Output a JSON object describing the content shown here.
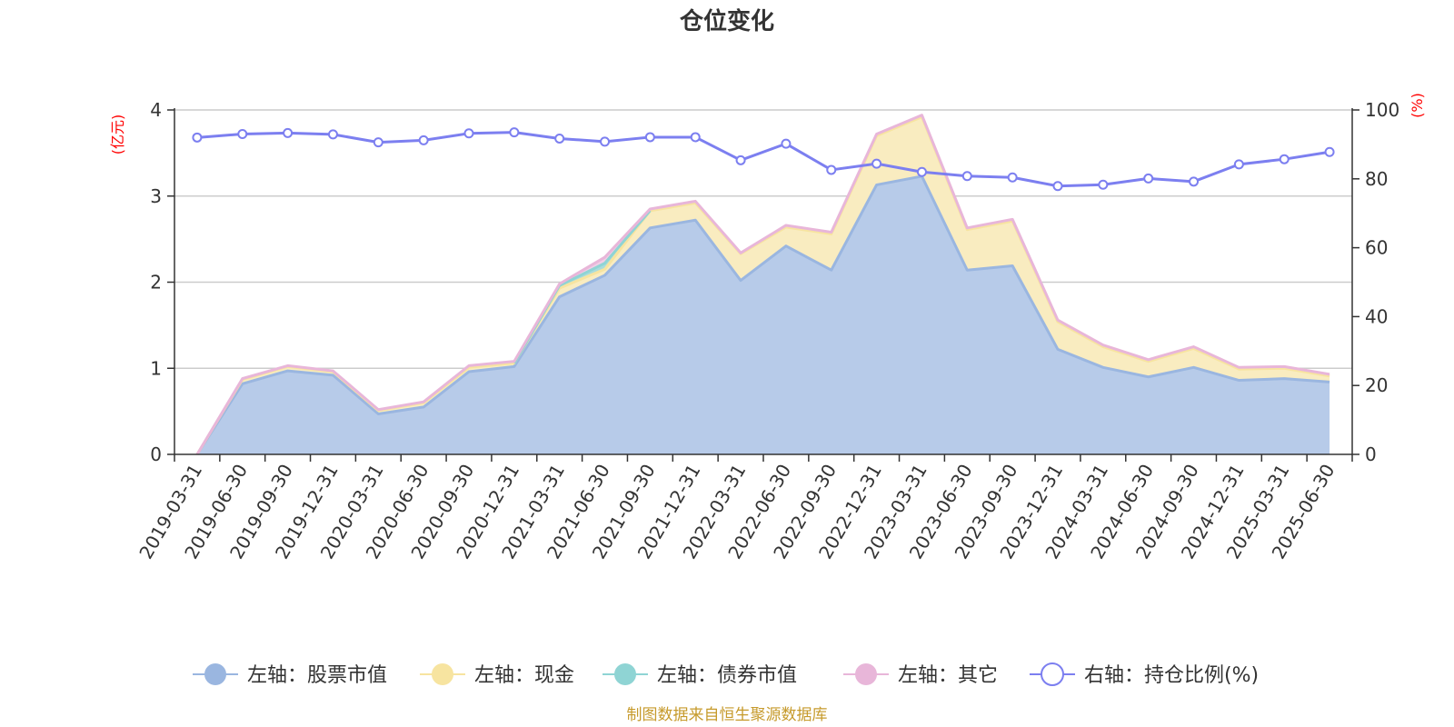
{
  "chart_data": {
    "type": "area",
    "title": "仓位变化",
    "left_axis_unit": "(亿元)",
    "right_axis_unit": "(%)",
    "ylim_left": [
      0,
      4
    ],
    "ylim_right": [
      0,
      100
    ],
    "left_ticks": [
      "0",
      "1",
      "2",
      "3",
      "4"
    ],
    "right_ticks": [
      "0",
      "20",
      "40",
      "60",
      "80",
      "100"
    ],
    "grid": true,
    "legend_position": "bottom",
    "categories": [
      "2019-03-31",
      "2019-06-30",
      "2019-09-30",
      "2019-12-31",
      "2020-03-31",
      "2020-06-30",
      "2020-09-30",
      "2020-12-31",
      "2021-03-31",
      "2021-06-30",
      "2021-09-30",
      "2021-12-31",
      "2022-03-31",
      "2022-06-30",
      "2022-09-30",
      "2022-12-31",
      "2023-03-31",
      "2023-06-30",
      "2023-09-30",
      "2023-12-31",
      "2024-03-31",
      "2024-06-30",
      "2024-09-30",
      "2024-12-31",
      "2025-03-31",
      "2025-06-30"
    ],
    "series": [
      {
        "name": "左轴：股票市值",
        "axis": "left",
        "kind": "area",
        "color": "#9ab6e0",
        "fill": "#b7cbe9",
        "values": [
          0.0,
          0.82,
          0.97,
          0.92,
          0.47,
          0.55,
          0.96,
          1.02,
          1.83,
          2.08,
          2.63,
          2.72,
          2.02,
          2.42,
          2.14,
          3.13,
          3.23,
          2.14,
          2.19,
          1.22,
          1.01,
          0.9,
          1.01,
          0.86,
          0.88,
          0.84
        ]
      },
      {
        "name": "左轴：现金",
        "axis": "left",
        "kind": "area",
        "color": "#f7e4a0",
        "fill": "#f9ecc0",
        "values": [
          0.0,
          0.05,
          0.05,
          0.04,
          0.04,
          0.05,
          0.05,
          0.04,
          0.1,
          0.07,
          0.2,
          0.2,
          0.31,
          0.22,
          0.42,
          0.57,
          0.69,
          0.47,
          0.52,
          0.32,
          0.24,
          0.18,
          0.22,
          0.13,
          0.12,
          0.07
        ]
      },
      {
        "name": "左轴：债券市值",
        "axis": "left",
        "kind": "area",
        "color": "#8fd4d4",
        "fill": "#a9dcdb",
        "values": [
          0,
          0,
          0,
          0,
          0,
          0,
          0,
          0,
          0.03,
          0.07,
          0,
          0,
          0,
          0,
          0,
          0,
          0,
          0,
          0,
          0,
          0,
          0,
          0,
          0,
          0,
          0
        ]
      },
      {
        "name": "左轴：其它",
        "axis": "left",
        "kind": "area",
        "color": "#e8b6d9",
        "fill": "#f0cfe6",
        "values": [
          0.0,
          0.01,
          0.01,
          0.01,
          0.01,
          0.01,
          0.02,
          0.02,
          0.02,
          0.07,
          0.02,
          0.02,
          0.01,
          0.02,
          0.02,
          0.02,
          0.02,
          0.02,
          0.02,
          0.02,
          0.02,
          0.02,
          0.02,
          0.02,
          0.02,
          0.02
        ]
      },
      {
        "name": "右轴：持仓比例(%)",
        "axis": "right",
        "kind": "line",
        "color": "#7c7ff0",
        "values": [
          92,
          93,
          93.3,
          92.9,
          90.6,
          91.2,
          93.2,
          93.5,
          91.7,
          90.8,
          92.1,
          92.1,
          85.4,
          90.2,
          82.6,
          84.4,
          82,
          80.8,
          80.4,
          77.9,
          78.3,
          80.1,
          79.2,
          84.2,
          85.7,
          87.8
        ]
      }
    ],
    "source_note": "制图数据来自恒生聚源数据库"
  }
}
